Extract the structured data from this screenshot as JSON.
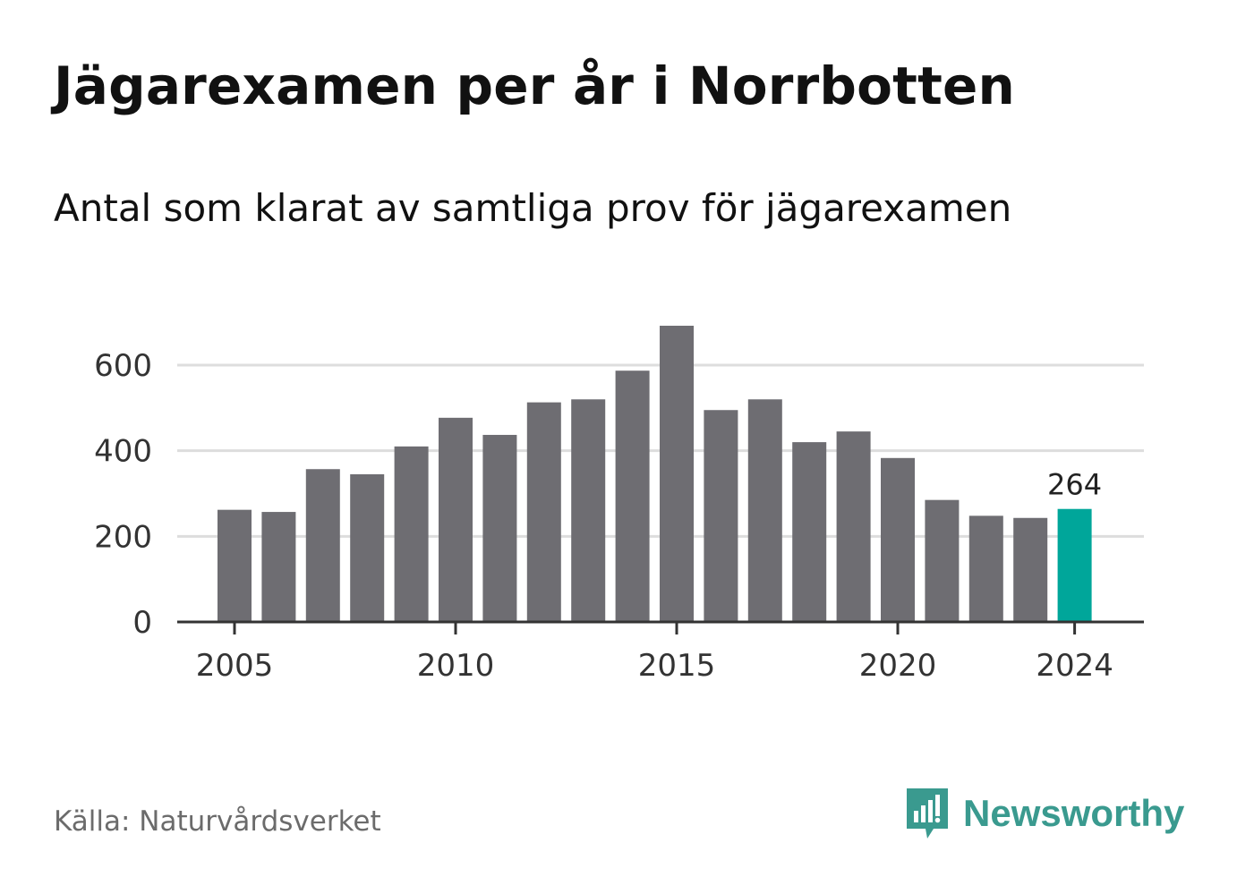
{
  "title": "Jägarexamen per år i Norrbotten",
  "subtitle": "Antal som klarat av samtliga prov för jägarexamen",
  "source": "Källa: Naturvårdsverket",
  "brand": {
    "name": "Newsworthy",
    "icon": "newsworthy-logo-icon",
    "color": "#3a9a8f"
  },
  "colors": {
    "bar": "#6e6d72",
    "highlight": "#00a69a",
    "grid": "#dddddd",
    "axis": "#333333"
  },
  "chart_data": {
    "type": "bar",
    "categories": [
      "2005",
      "2006",
      "2007",
      "2008",
      "2009",
      "2010",
      "2011",
      "2012",
      "2013",
      "2014",
      "2015",
      "2016",
      "2017",
      "2018",
      "2019",
      "2020",
      "2021",
      "2022",
      "2023",
      "2024"
    ],
    "values": [
      262,
      257,
      357,
      345,
      410,
      477,
      437,
      513,
      520,
      587,
      692,
      495,
      520,
      420,
      445,
      383,
      285,
      248,
      243,
      264
    ],
    "x_tick_labels": [
      "2005",
      "2010",
      "2015",
      "2020",
      "2024"
    ],
    "y_ticks": [
      0,
      200,
      400,
      600
    ],
    "ylim": [
      0,
      700
    ],
    "grid": true,
    "highlight_category": "2024",
    "annotation": {
      "category": "2024",
      "text": "264"
    },
    "xlabel": "",
    "ylabel": ""
  }
}
